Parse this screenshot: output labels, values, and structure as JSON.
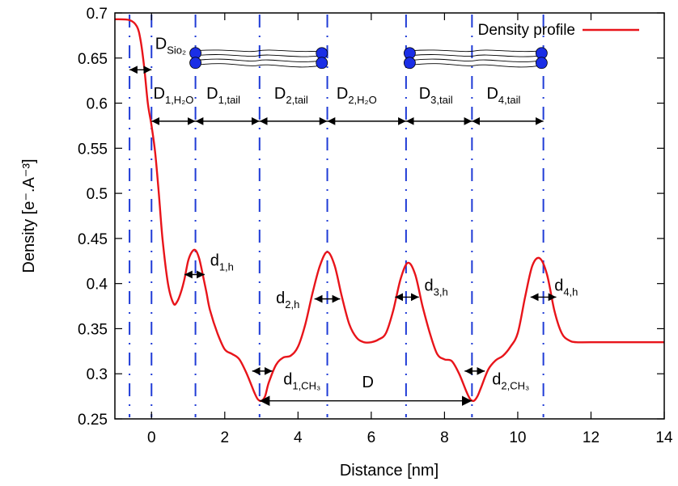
{
  "chart_data": {
    "type": "line",
    "xlabel": "Distance [nm]",
    "ylabel": "Density [e⁻.A⁻³]",
    "xlim": [
      -1,
      14
    ],
    "ylim": [
      0.25,
      0.7
    ],
    "xticks": [
      0,
      2,
      4,
      6,
      8,
      10,
      12,
      14
    ],
    "yticks": [
      0.25,
      0.3,
      0.35,
      0.4,
      0.45,
      0.5,
      0.55,
      0.6,
      0.65,
      0.7
    ],
    "xtick_labels": [
      "0",
      "2",
      "4",
      "6",
      "8",
      "10",
      "12",
      "14"
    ],
    "ytick_labels": [
      "0.25",
      "0.3",
      "0.35",
      "0.4",
      "0.45",
      "0.5",
      "0.55",
      "0.6",
      "0.65",
      "0.7"
    ],
    "legend": {
      "position": "top-right",
      "entries": [
        "Density profile"
      ]
    },
    "grid": false,
    "series": [
      {
        "name": "Density profile",
        "color": "#e8141a",
        "x": [
          -1.0,
          -0.6,
          -0.4,
          -0.3,
          -0.2,
          -0.1,
          0.0,
          0.1,
          0.2,
          0.3,
          0.45,
          0.6,
          0.7,
          0.8,
          0.9,
          1.0,
          1.1,
          1.2,
          1.3,
          1.4,
          1.5,
          1.6,
          1.8,
          2.0,
          2.2,
          2.4,
          2.6,
          2.8,
          2.9,
          3.0,
          3.1,
          3.2,
          3.4,
          3.6,
          3.8,
          4.0,
          4.2,
          4.4,
          4.6,
          4.8,
          5.0,
          5.2,
          5.4,
          5.6,
          5.8,
          6.0,
          6.2,
          6.4,
          6.6,
          6.8,
          7.0,
          7.2,
          7.4,
          7.6,
          7.8,
          8.0,
          8.2,
          8.4,
          8.6,
          8.7,
          8.8,
          8.9,
          9.0,
          9.2,
          9.4,
          9.6,
          9.8,
          10.0,
          10.2,
          10.4,
          10.6,
          10.8,
          11.0,
          11.2,
          11.4,
          11.6,
          12.0,
          14.0
        ],
        "y": [
          0.693,
          0.692,
          0.685,
          0.67,
          0.64,
          0.6,
          0.575,
          0.545,
          0.5,
          0.45,
          0.4,
          0.378,
          0.38,
          0.39,
          0.405,
          0.425,
          0.435,
          0.437,
          0.428,
          0.41,
          0.39,
          0.37,
          0.345,
          0.327,
          0.322,
          0.316,
          0.3,
          0.28,
          0.272,
          0.27,
          0.275,
          0.29,
          0.31,
          0.318,
          0.32,
          0.33,
          0.355,
          0.39,
          0.42,
          0.435,
          0.42,
          0.385,
          0.355,
          0.34,
          0.335,
          0.335,
          0.338,
          0.345,
          0.37,
          0.405,
          0.423,
          0.41,
          0.375,
          0.345,
          0.322,
          0.316,
          0.314,
          0.3,
          0.28,
          0.272,
          0.27,
          0.275,
          0.285,
          0.305,
          0.315,
          0.32,
          0.33,
          0.345,
          0.385,
          0.42,
          0.428,
          0.41,
          0.37,
          0.345,
          0.337,
          0.335,
          0.335,
          0.335
        ]
      }
    ],
    "reference_lines_x": [
      -0.6,
      0.0,
      1.2,
      2.95,
      4.8,
      6.95,
      8.75,
      10.7
    ],
    "annotations": [
      {
        "text": "D",
        "sub": "Sio₂"
      },
      {
        "text": "D",
        "sub": "1,H₂O"
      },
      {
        "text": "D",
        "sub": "1,tail"
      },
      {
        "text": "D",
        "sub": "2,tail"
      },
      {
        "text": "D",
        "sub": "2,H₂O"
      },
      {
        "text": "D",
        "sub": "3,tail"
      },
      {
        "text": "D",
        "sub": "4,tail"
      },
      {
        "text": "d",
        "sub": "1,h"
      },
      {
        "text": "d",
        "sub": "2,h"
      },
      {
        "text": "d",
        "sub": "3,h"
      },
      {
        "text": "d",
        "sub": "4,h"
      },
      {
        "text": "d",
        "sub": "1,CH₃"
      },
      {
        "text": "d",
        "sub": "2,CH₃"
      },
      {
        "text": "D",
        "sub": ""
      }
    ],
    "arrow_spans": [
      {
        "x1": -0.6,
        "x2": 0.0,
        "y": 0.637
      },
      {
        "x1": 0.0,
        "x2": 1.2,
        "y": 0.58
      },
      {
        "x1": 1.2,
        "x2": 2.95,
        "y": 0.58
      },
      {
        "x1": 2.95,
        "x2": 4.8,
        "y": 0.58
      },
      {
        "x1": 4.8,
        "x2": 6.95,
        "y": 0.58
      },
      {
        "x1": 6.95,
        "x2": 8.75,
        "y": 0.58
      },
      {
        "x1": 8.75,
        "x2": 10.7,
        "y": 0.58
      },
      {
        "x1": 0.9,
        "x2": 1.45,
        "y": 0.41
      },
      {
        "x1": 4.45,
        "x2": 5.15,
        "y": 0.383
      },
      {
        "x1": 6.65,
        "x2": 7.3,
        "y": 0.385
      },
      {
        "x1": 10.35,
        "x2": 11.05,
        "y": 0.385
      },
      {
        "x1": 2.75,
        "x2": 3.3,
        "y": 0.303
      },
      {
        "x1": 8.55,
        "x2": 9.1,
        "y": 0.303
      },
      {
        "x1": 2.95,
        "x2": 8.75,
        "y": 0.27
      }
    ]
  }
}
